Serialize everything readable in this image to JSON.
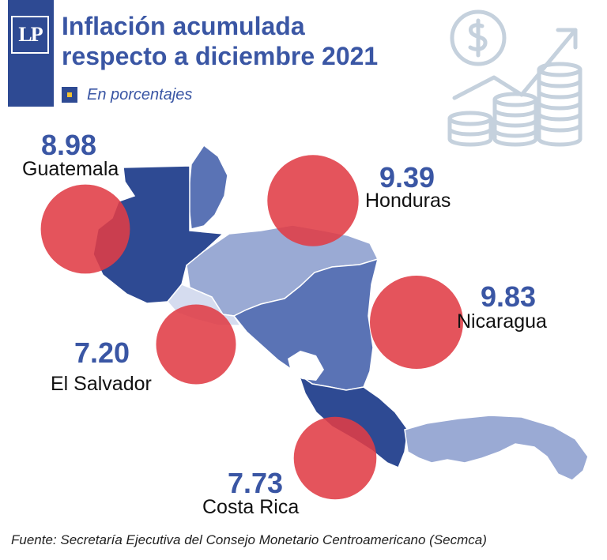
{
  "header": {
    "logo_text": "LP",
    "title_line1": "Inflación acumulada",
    "title_line2": "respecto a diciembre 2021",
    "subtitle": "En porcentajes"
  },
  "chart_data": {
    "type": "bubble-map",
    "title": "Inflación acumulada respecto a diciembre 2021",
    "subtitle": "En porcentajes",
    "categories": [
      "Guatemala",
      "Honduras",
      "Nicaragua",
      "El Salvador",
      "Costa Rica"
    ],
    "values": [
      8.98,
      9.39,
      9.83,
      7.2,
      7.73
    ],
    "value_labels": [
      "8.98",
      "9.39",
      "9.83",
      "7.20",
      "7.73"
    ],
    "bubble_color": "#e03c46",
    "map_colors": [
      "#2e4a93",
      "#5a73b5",
      "#9aaad4",
      "#d5dcef"
    ]
  },
  "source": "Fuente: Secretaría Ejecutiva del Consejo Monetario Centroamericano (Secmca)",
  "icon": "coins-growth-icon"
}
